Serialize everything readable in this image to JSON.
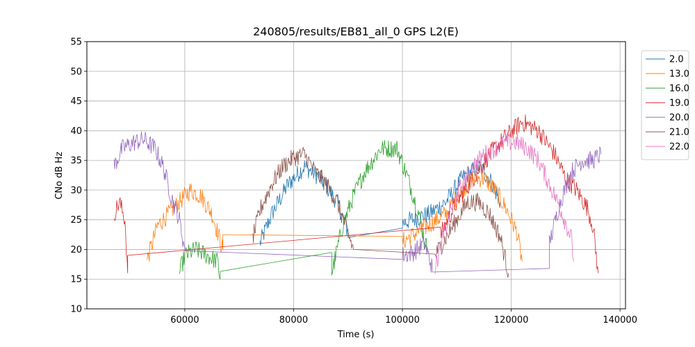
{
  "chart_data": {
    "type": "line",
    "title": "240805/results/EB81_all_0 GPS L2(E)",
    "xlabel": "Time (s)",
    "ylabel": "CNo dB Hz",
    "xlim": [
      42000,
      141000
    ],
    "ylim": [
      10,
      55
    ],
    "xticks": [
      60000,
      80000,
      100000,
      120000,
      140000
    ],
    "yticks": [
      10,
      15,
      20,
      25,
      30,
      35,
      40,
      45,
      50,
      55
    ],
    "grid": true,
    "legend": "upper-right-outside",
    "series": [
      {
        "name": "2.0",
        "color": "#1f77b4",
        "x": [
          73800,
          76000,
          79000,
          82000,
          85000,
          88000,
          90000,
          90000,
          100000,
          105000,
          108000,
          111000,
          114000,
          116000,
          118000
        ],
        "y": [
          21,
          26,
          31,
          34,
          32,
          28,
          23,
          22,
          24.5,
          26,
          28,
          32,
          34,
          32,
          28
        ]
      },
      {
        "name": "13.0",
        "color": "#ff7f0e",
        "x": [
          53000,
          55000,
          57000,
          59000,
          61000,
          63000,
          65000,
          67000,
          67000,
          100000,
          108000,
          111000,
          113000,
          115000,
          117000,
          119000,
          121000,
          122000
        ],
        "y": [
          18,
          24,
          26,
          28,
          30,
          29,
          26,
          20,
          22.5,
          21.3,
          26,
          30,
          32,
          32,
          30,
          27,
          23,
          18
        ]
      },
      {
        "name": "16.0",
        "color": "#2ca02c",
        "x": [
          59000,
          60000,
          62000,
          64000,
          66000,
          66500,
          66500,
          87000,
          87000,
          89000,
          91000,
          93000,
          96000,
          99000,
          101000,
          103000,
          104500
        ],
        "y": [
          16,
          19,
          20,
          19,
          18,
          15,
          16.3,
          19.5,
          16,
          24,
          29,
          33,
          37,
          37,
          32,
          26,
          20
        ]
      },
      {
        "name": "19.0",
        "color": "#d62728",
        "x": [
          47000,
          48000,
          49000,
          49500,
          49500,
          107000,
          110000,
          113000,
          116000,
          119000,
          122000,
          125000,
          128000,
          130000,
          132000,
          134000,
          135000,
          136000
        ],
        "y": [
          26,
          28,
          25,
          16,
          19,
          22.5,
          28,
          32,
          36,
          39,
          41.5,
          40,
          36,
          32,
          30,
          27,
          24,
          16
        ]
      },
      {
        "name": "20.0",
        "color": "#9467bd",
        "x": [
          47000,
          48500,
          50500,
          52500,
          54500,
          56000,
          57500,
          59000,
          60000,
          60000,
          100000,
          102000,
          104000,
          105500,
          105500,
          127000,
          127000,
          129000,
          131000,
          133000,
          135000,
          136500
        ],
        "y": [
          34,
          37,
          38,
          38.5,
          37,
          34,
          29,
          25,
          20,
          19.8,
          19,
          19.5,
          21,
          17,
          16.2,
          16.8,
          21,
          28,
          33,
          35,
          35,
          36
        ]
      },
      {
        "name": "21.0",
        "color": "#8c564b",
        "x": [
          72500,
          74000,
          76000,
          78000,
          80000,
          82000,
          84000,
          86000,
          88000,
          89500,
          91000,
          106000,
          108000,
          110000,
          112000,
          114000,
          116000,
          118000,
          119500
        ],
        "y": [
          22,
          27,
          31,
          34,
          35.5,
          36,
          33,
          31,
          28,
          24,
          20,
          19,
          22,
          25,
          28,
          28,
          26,
          22,
          16
        ]
      },
      {
        "name": "22.0",
        "color": "#e377c2",
        "x": [
          106000,
          107500,
          109000,
          111000,
          113000,
          115000,
          117000,
          119000,
          121000,
          123000,
          125000,
          127000,
          129000,
          131000,
          131500
        ],
        "y": [
          17,
          22,
          27,
          31,
          34,
          36,
          37,
          38,
          38,
          37,
          35,
          31,
          27,
          22,
          18
        ]
      }
    ]
  }
}
